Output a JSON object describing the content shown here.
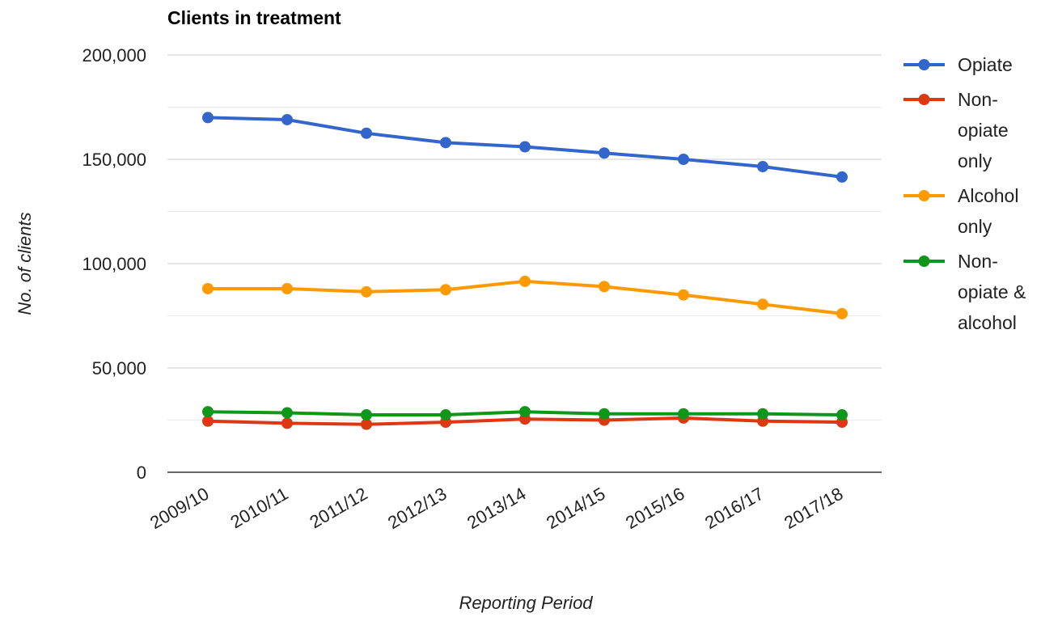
{
  "chart_data": {
    "type": "line",
    "title": "Clients in treatment",
    "xlabel": "Reporting Period",
    "ylabel": "No. of clients",
    "categories": [
      "2009/10",
      "2010/11",
      "2011/12",
      "2012/13",
      "2013/14",
      "2014/15",
      "2015/16",
      "2016/17",
      "2017/18"
    ],
    "ylim": [
      0,
      200000
    ],
    "y_ticks": [
      {
        "value": 0,
        "label": "0"
      },
      {
        "value": 50000,
        "label": "50,000"
      },
      {
        "value": 100000,
        "label": "100,000"
      },
      {
        "value": 150000,
        "label": "150,000"
      },
      {
        "value": 200000,
        "label": "200,000"
      }
    ],
    "minor_gridlines": [
      25000,
      75000,
      125000,
      175000
    ],
    "grid": true,
    "legend_position": "right",
    "series": [
      {
        "name": "Opiate",
        "legend_lines": [
          "Opiate"
        ],
        "color": "#3366cc",
        "values": [
          170000,
          169000,
          162500,
          158000,
          156000,
          153000,
          150000,
          146500,
          141500
        ]
      },
      {
        "name": "Non-opiate only",
        "legend_lines": [
          "Non-",
          "opiate",
          "only"
        ],
        "color": "#dc3912",
        "values": [
          24500,
          23500,
          23000,
          24000,
          25500,
          25000,
          26000,
          24500,
          24000
        ]
      },
      {
        "name": "Alcohol only",
        "legend_lines": [
          "Alcohol",
          "only"
        ],
        "color": "#ff9900",
        "values": [
          88000,
          88000,
          86500,
          87500,
          91500,
          89000,
          85000,
          80500,
          76000
        ]
      },
      {
        "name": "Non-opiate & alcohol",
        "legend_lines": [
          "Non-",
          "opiate &",
          "alcohol"
        ],
        "color": "#109618",
        "values": [
          29000,
          28500,
          27500,
          27500,
          29000,
          28000,
          28000,
          28000,
          27500
        ]
      }
    ]
  }
}
